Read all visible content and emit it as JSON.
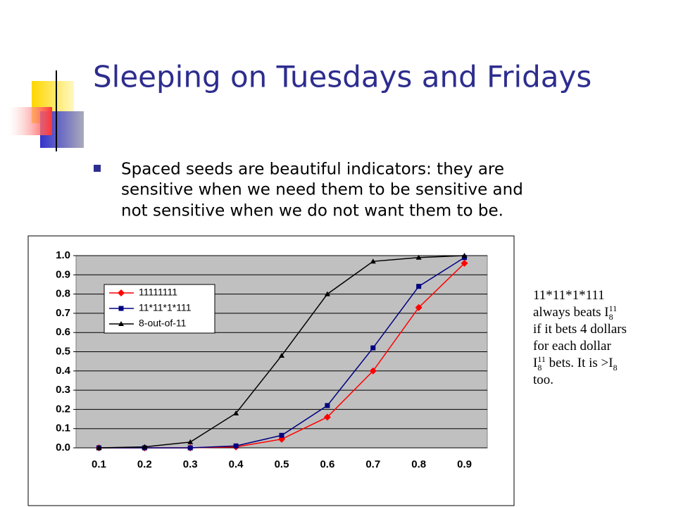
{
  "slide": {
    "title": "Sleeping on Tuesdays and Fridays",
    "bullet": [
      "Spaced seeds are beautiful indicators: they are",
      "sensitive when we need them to be sensitive and",
      "not sensitive when we do not want them to be."
    ],
    "note": [
      [
        "11*11*1*111"
      ],
      [
        "always beats I",
        "8",
        "11"
      ],
      [
        "if it bets 4 dollars"
      ],
      [
        "for each dollar"
      ],
      [
        "I",
        "8",
        "11",
        " bets. It is >I",
        "8"
      ],
      [
        "too."
      ]
    ]
  },
  "chart_data": {
    "type": "line",
    "categories": [
      "0.1",
      "0.2",
      "0.3",
      "0.4",
      "0.5",
      "0.6",
      "0.7",
      "0.8",
      "0.9"
    ],
    "series": [
      {
        "name": "11111111",
        "color": "#ff0000",
        "marker": "diamond",
        "values": [
          0,
          0,
          0,
          0.005,
          0.045,
          0.16,
          0.4,
          0.73,
          0.96
        ]
      },
      {
        "name": "11*11*1*111",
        "color": "#000080",
        "marker": "square",
        "values": [
          0,
          0,
          0,
          0.01,
          0.065,
          0.22,
          0.52,
          0.84,
          0.99
        ]
      },
      {
        "name": "8-out-of-11",
        "color": "#000000",
        "marker": "triangle",
        "values": [
          0,
          0.005,
          0.03,
          0.18,
          0.48,
          0.8,
          0.97,
          0.99,
          1.0
        ]
      }
    ],
    "ylim": [
      0,
      1
    ],
    "yticks": [
      {
        "value": 0,
        "label": "0.0"
      },
      0.1,
      0.2,
      0.3,
      0.4,
      0.5,
      0.6,
      0.7,
      0.8,
      0.9,
      {
        "value": 1,
        "label": "1.0"
      }
    ],
    "grid": true
  }
}
